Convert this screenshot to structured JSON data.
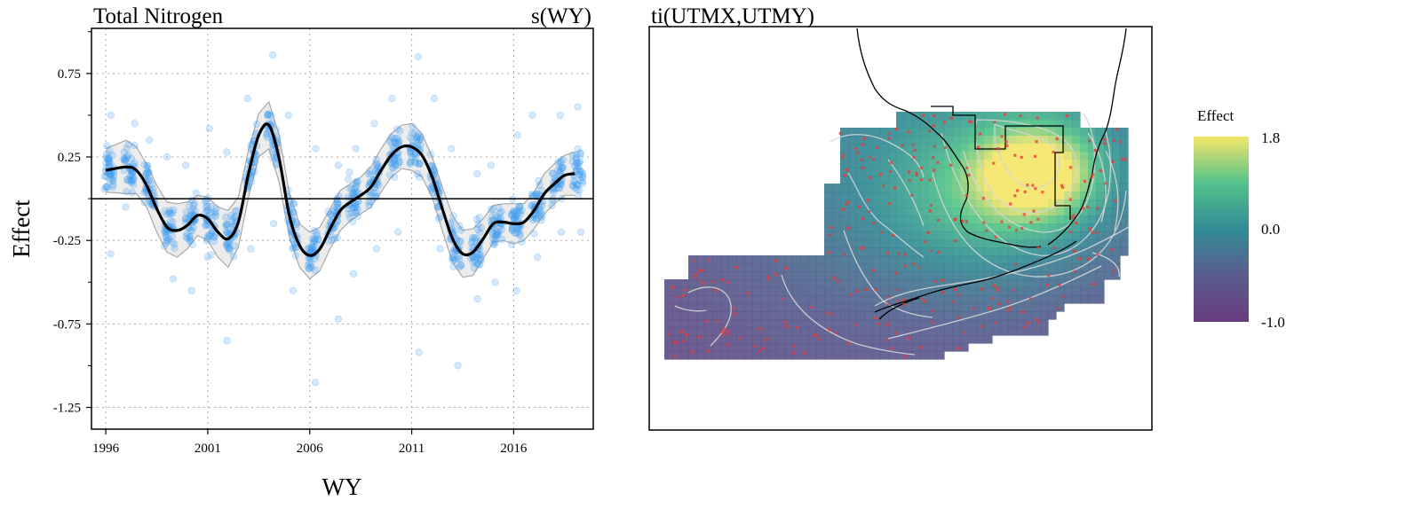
{
  "colors": {
    "points": "#3b9cf0",
    "smooth": "#000000",
    "ci_fill": "#ececec",
    "ci_line": "#a9a9a9",
    "stations": "#e83a3a",
    "coast": "#000000",
    "contours": "#d6d6d6",
    "viridis": [
      "#440154",
      "#3b528b",
      "#21918c",
      "#5ec962",
      "#fde725"
    ]
  },
  "chart_data": [
    {
      "type": "line",
      "title": "Total Nitrogen",
      "subtitle": "s(WY)",
      "xlabel": "WY",
      "ylabel": "Effect",
      "xlim": [
        1995.3,
        2019.9
      ],
      "ylim": [
        -1.38,
        1.02
      ],
      "xticks": [
        1996,
        2001,
        2006,
        2011,
        2016
      ],
      "yticks": [
        0.75,
        0.25,
        -0.25,
        -0.75,
        -1.25
      ],
      "ytick_labels": [
        "0.75",
        "0.25",
        "-0.25",
        "-0.75",
        "-1.25"
      ],
      "grid": true,
      "reference_line": 0,
      "smooth": {
        "x": [
          1996,
          1997,
          1997.5,
          1998,
          1998.5,
          1999,
          1999.5,
          2000,
          2000.5,
          2001,
          2001.5,
          2002,
          2002.5,
          2003,
          2003.5,
          2004,
          2004.5,
          2005,
          2005.5,
          2006,
          2006.5,
          2007,
          2007.5,
          2008,
          2008.5,
          2009,
          2009.5,
          2010,
          2010.5,
          2011,
          2011.5,
          2012,
          2012.5,
          2013,
          2013.5,
          2014,
          2014.5,
          2015,
          2015.5,
          2016,
          2016.5,
          2017,
          2017.5,
          2018,
          2018.5,
          2019
        ],
        "y": [
          0.17,
          0.19,
          0.17,
          0.08,
          -0.06,
          -0.17,
          -0.19,
          -0.16,
          -0.1,
          -0.12,
          -0.2,
          -0.24,
          -0.14,
          0.15,
          0.38,
          0.44,
          0.24,
          -0.1,
          -0.28,
          -0.34,
          -0.3,
          -0.18,
          -0.07,
          -0.02,
          0.02,
          0.07,
          0.17,
          0.26,
          0.31,
          0.31,
          0.26,
          0.13,
          -0.06,
          -0.24,
          -0.33,
          -0.32,
          -0.24,
          -0.15,
          -0.14,
          -0.15,
          -0.14,
          -0.07,
          0.03,
          0.09,
          0.14,
          0.15
        ]
      },
      "ci_halfwidth": [
        0.13,
        0.16,
        0.14,
        0.13,
        0.14,
        0.15,
        0.16,
        0.14,
        0.12,
        0.13,
        0.15,
        0.17,
        0.15,
        0.14,
        0.13,
        0.14,
        0.14,
        0.13,
        0.13,
        0.14,
        0.13,
        0.12,
        0.12,
        0.11,
        0.11,
        0.12,
        0.13,
        0.13,
        0.13,
        0.14,
        0.13,
        0.12,
        0.13,
        0.14,
        0.14,
        0.14,
        0.12,
        0.11,
        0.11,
        0.12,
        0.11,
        0.11,
        0.12,
        0.12,
        0.12,
        0.13
      ],
      "observations_note_values": {
        "per_year_range": [
          [
            1996,
            -0.33,
            0.5
          ],
          [
            1997,
            -0.05,
            0.45
          ],
          [
            1998,
            -0.05,
            0.35
          ],
          [
            1999,
            -0.48,
            0.25
          ],
          [
            2000,
            -0.55,
            0.2
          ],
          [
            2001,
            -0.35,
            0.42
          ],
          [
            2002,
            -0.85,
            0.28
          ],
          [
            2003,
            -0.3,
            0.6
          ],
          [
            2004,
            -0.15,
            0.86
          ],
          [
            2005,
            -0.55,
            0.5
          ],
          [
            2006,
            -1.1,
            0.3
          ],
          [
            2007,
            -0.72,
            0.2
          ],
          [
            2008,
            -0.45,
            0.3
          ],
          [
            2009,
            -0.3,
            0.45
          ],
          [
            2010,
            -0.2,
            0.6
          ],
          [
            2011,
            -0.92,
            0.85
          ],
          [
            2012,
            -0.3,
            0.6
          ],
          [
            2013,
            -1.0,
            0.3
          ],
          [
            2014,
            -0.6,
            0.15
          ],
          [
            2015,
            -0.5,
            0.2
          ],
          [
            2016,
            -0.55,
            0.38
          ],
          [
            2017,
            -0.35,
            0.5
          ],
          [
            2018,
            -0.2,
            0.5
          ],
          [
            2019,
            -0.2,
            0.55
          ]
        ]
      }
    },
    {
      "type": "heatmap",
      "title": "ti(UTMX,UTMY)",
      "legend_title": "Effect",
      "legend_placement": "right",
      "color_range": [
        -1.0,
        1.8
      ],
      "legend_ticks": [
        1.8,
        0.0,
        -1.0
      ],
      "legend_tick_labels": [
        "1.8",
        "0.0",
        "-1.0"
      ]
    }
  ]
}
